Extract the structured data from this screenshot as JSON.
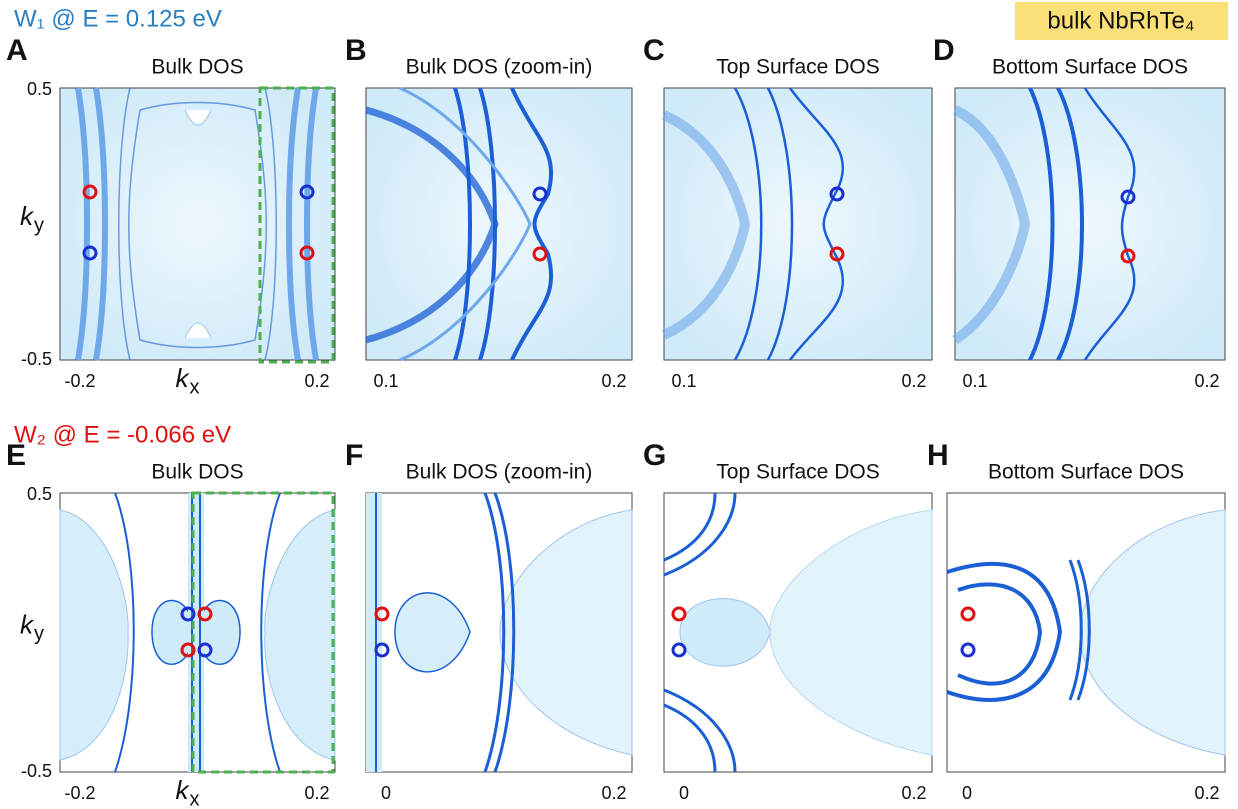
{
  "header": {
    "row1": "W₁ @ E = 0.125 eV",
    "row2": "W₂ @ E = -0.066 eV",
    "material": "bulk NbRhTe₄"
  },
  "axis_symbols": {
    "k": "k",
    "x": "x",
    "y": "y"
  },
  "panels": [
    {
      "letter": "A",
      "title": "Bulk DOS",
      "y_top": "0.5",
      "y_bottom": "-0.5",
      "x_left": "-0.2",
      "x_right": "0.2"
    },
    {
      "letter": "B",
      "title": "Bulk DOS (zoom-in)",
      "x_left": "0.1",
      "x_right": "0.2"
    },
    {
      "letter": "C",
      "title": "Top Surface DOS",
      "x_left": "0.1",
      "x_right": "0.2"
    },
    {
      "letter": "D",
      "title": "Bottom Surface DOS",
      "x_left": "0.1",
      "x_right": "0.2"
    },
    {
      "letter": "E",
      "title": "Bulk DOS",
      "y_top": "0.5",
      "y_bottom": "-0.5",
      "x_left": "-0.2",
      "x_right": "0.2"
    },
    {
      "letter": "F",
      "title": "Bulk DOS (zoom-in)",
      "x_left": "0",
      "x_right": "0.2"
    },
    {
      "letter": "G",
      "title": "Top Surface DOS",
      "x_left": "0",
      "x_right": "0.2"
    },
    {
      "letter": "H",
      "title": "Bottom Surface DOS",
      "x_left": "0",
      "x_right": "0.2"
    }
  ]
}
